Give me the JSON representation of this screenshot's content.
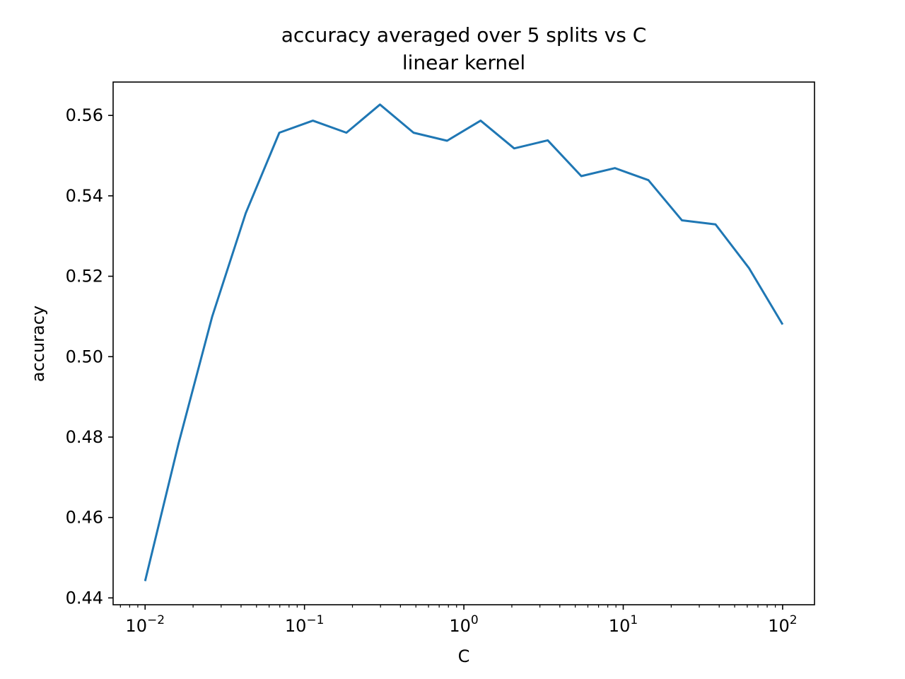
{
  "chart_data": {
    "type": "line",
    "title": "accuracy averaged over 5 splits vs C",
    "subtitle": "linear kernel",
    "xlabel": "C",
    "ylabel": "accuracy",
    "xscale": "log",
    "xlim": [
      0.0063,
      158.5
    ],
    "ylim": [
      0.4383,
      0.5683
    ],
    "grid": false,
    "x_ticks": [
      {
        "value": 0.01,
        "base": "10",
        "exp": "−2"
      },
      {
        "value": 0.1,
        "base": "10",
        "exp": "−1"
      },
      {
        "value": 1,
        "base": "10",
        "exp": "0"
      },
      {
        "value": 10,
        "base": "10",
        "exp": "1"
      },
      {
        "value": 100,
        "base": "10",
        "exp": "2"
      }
    ],
    "y_ticks": [
      {
        "value": 0.44,
        "label": "0.44"
      },
      {
        "value": 0.46,
        "label": "0.46"
      },
      {
        "value": 0.48,
        "label": "0.48"
      },
      {
        "value": 0.5,
        "label": "0.50"
      },
      {
        "value": 0.52,
        "label": "0.52"
      },
      {
        "value": 0.54,
        "label": "0.54"
      },
      {
        "value": 0.56,
        "label": "0.56"
      }
    ],
    "series": [
      {
        "color": "#1f77b4",
        "x": [
          0.01,
          0.01624,
          0.02637,
          0.04281,
          0.06952,
          0.1129,
          0.1833,
          0.2976,
          0.4833,
          0.7848,
          1.274,
          2.069,
          3.36,
          5.456,
          8.859,
          14.38,
          23.36,
          37.93,
          61.58,
          100
        ],
        "y": [
          0.4442,
          0.4785,
          0.51,
          0.5357,
          0.5557,
          0.5587,
          0.5557,
          0.5627,
          0.5557,
          0.5537,
          0.5587,
          0.5518,
          0.5538,
          0.5449,
          0.5469,
          0.5439,
          0.5339,
          0.5329,
          0.522,
          0.508
        ]
      }
    ]
  }
}
